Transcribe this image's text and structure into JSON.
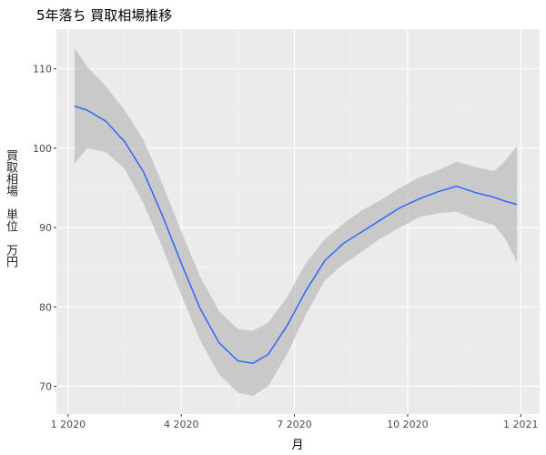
{
  "chart_data": {
    "type": "smooth",
    "title": "5年落ち 買取相場推移",
    "xlabel": "月",
    "ylabel": "買取相場　単位　万円",
    "x": [
      0.17,
      0.5,
      1.0,
      1.5,
      2.0,
      2.5,
      3.0,
      3.5,
      4.0,
      4.5,
      4.9,
      5.3,
      5.8,
      6.3,
      6.8,
      7.3,
      7.8,
      8.3,
      8.8,
      9.3,
      9.8,
      10.3,
      10.8,
      11.3,
      11.6,
      11.9
    ],
    "values": [
      105.3,
      104.8,
      103.4,
      100.8,
      97.0,
      91.5,
      85.5,
      79.8,
      75.5,
      73.2,
      72.9,
      74.0,
      77.6,
      82.0,
      85.8,
      88.0,
      89.5,
      91.0,
      92.5,
      93.6,
      94.5,
      95.2,
      94.4,
      93.8,
      93.3,
      92.9
    ],
    "lower": [
      98.0,
      100.0,
      99.5,
      97.4,
      93.0,
      87.5,
      81.5,
      75.8,
      71.5,
      69.2,
      68.8,
      70.0,
      74.0,
      79.0,
      83.3,
      85.4,
      87.0,
      88.7,
      90.0,
      91.3,
      91.8,
      92.0,
      91.0,
      90.3,
      88.5,
      85.6
    ],
    "upper": [
      112.6,
      110.3,
      107.8,
      104.8,
      101.0,
      95.5,
      89.5,
      83.8,
      79.5,
      77.2,
      77.0,
      78.0,
      81.2,
      85.5,
      88.5,
      90.5,
      92.2,
      93.5,
      95.0,
      96.3,
      97.2,
      98.3,
      97.6,
      97.1,
      98.5,
      100.3
    ],
    "color": "#3366ff",
    "band_color": "#bdbdbd",
    "xlim": [
      -0.31,
      12.5
    ],
    "xticks": [
      {
        "value": 0,
        "label": "1 2020"
      },
      {
        "value": 3,
        "label": "4 2020"
      },
      {
        "value": 6,
        "label": "7 2020"
      },
      {
        "value": 9,
        "label": "10 2020"
      },
      {
        "value": 12,
        "label": "1 2021"
      }
    ],
    "ylim": [
      66.5,
      115
    ],
    "yticks": [
      70,
      80,
      90,
      100,
      110
    ],
    "grid": true
  }
}
